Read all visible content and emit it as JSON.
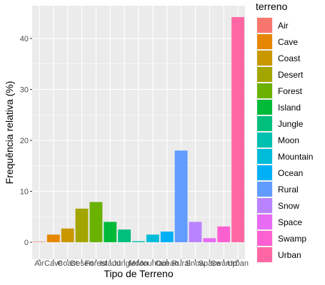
{
  "chart_data": {
    "type": "bar",
    "title": "",
    "xlabel": "Tipo de Terreno",
    "ylabel": "Frequência relativa (%)",
    "categories": [
      "Air",
      "Cave",
      "Coast",
      "Desert",
      "Forest",
      "Island",
      "Jungle",
      "Moon",
      "Mountain",
      "Ocean",
      "Rural",
      "Snow",
      "Space",
      "Swamp",
      "Urban"
    ],
    "values": [
      0.1,
      1.5,
      2.7,
      6.6,
      7.9,
      4.0,
      2.5,
      0.2,
      1.5,
      2.1,
      18.0,
      4.0,
      0.8,
      3.1,
      44.2
    ],
    "colors": [
      "#F8766D",
      "#E58700",
      "#C99800",
      "#A3A500",
      "#6BB100",
      "#00BA38",
      "#00BF7D",
      "#00C0AF",
      "#00BCD8",
      "#00B0F6",
      "#619CFF",
      "#B983FF",
      "#E76BF3",
      "#FD61D1",
      "#FF67A4"
    ],
    "yticks": [
      0,
      10,
      20,
      30,
      40
    ],
    "ylim": [
      0,
      45.5
    ],
    "grid": true,
    "panel_background": "#EBEBEB",
    "legend": {
      "title": "terreno",
      "position": "right"
    }
  }
}
